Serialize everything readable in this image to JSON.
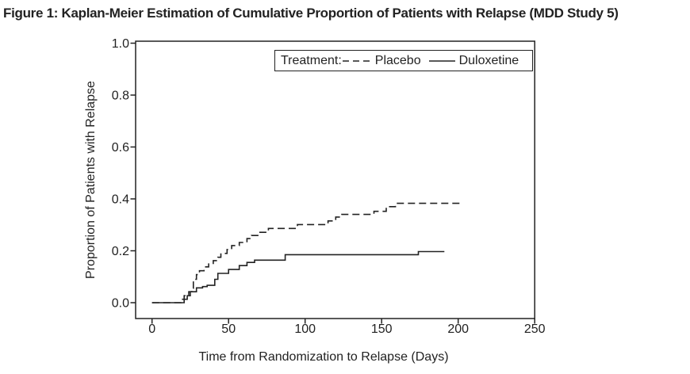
{
  "figure": {
    "title": "Figure 1: Kaplan-Meier Estimation of Cumulative Proportion of Patients with Relapse (MDD Study 5)"
  },
  "chart_data": {
    "type": "line",
    "subtype": "kaplan_meier_step",
    "title": "Figure 1: Kaplan-Meier Estimation of Cumulative Proportion of Patients with Relapse (MDD Study 5)",
    "xlabel": "Time from Randomization to Relapse (Days)",
    "ylabel": "Proportion of Patients with Relapse",
    "xlim": [
      0,
      250
    ],
    "ylim": [
      0.0,
      1.0
    ],
    "x_ticks": [
      0,
      50,
      100,
      150,
      200,
      250
    ],
    "x_tick_labels": [
      "0",
      "50",
      "100",
      "150",
      "200",
      "250"
    ],
    "y_ticks": [
      0.0,
      0.2,
      0.4,
      0.6,
      0.8,
      1.0
    ],
    "y_tick_labels": [
      "0.0",
      "0.2",
      "0.4",
      "0.6",
      "0.8",
      "1.0"
    ],
    "grid": false,
    "legend": {
      "label": "Treatment:",
      "position": "top-inside",
      "entries": [
        {
          "name": "Placebo",
          "line_style": "dashed"
        },
        {
          "name": "Duloxetine",
          "line_style": "solid"
        }
      ]
    },
    "series": [
      {
        "name": "Placebo",
        "line_style": "dashed",
        "color": "#222222",
        "points": [
          [
            0,
            0.0
          ],
          [
            19,
            0.013
          ],
          [
            21,
            0.027
          ],
          [
            24,
            0.042
          ],
          [
            26,
            0.055
          ],
          [
            27,
            0.09
          ],
          [
            29,
            0.108
          ],
          [
            31,
            0.123
          ],
          [
            34,
            0.138
          ],
          [
            37,
            0.149
          ],
          [
            40,
            0.162
          ],
          [
            43,
            0.175
          ],
          [
            45,
            0.19
          ],
          [
            49,
            0.205
          ],
          [
            52,
            0.22
          ],
          [
            57,
            0.232
          ],
          [
            62,
            0.247
          ],
          [
            65,
            0.259
          ],
          [
            70,
            0.271
          ],
          [
            76,
            0.286
          ],
          [
            95,
            0.301
          ],
          [
            115,
            0.315
          ],
          [
            120,
            0.33
          ],
          [
            124,
            0.34
          ],
          [
            145,
            0.352
          ],
          [
            153,
            0.37
          ],
          [
            159,
            0.383
          ],
          [
            202,
            0.383
          ]
        ]
      },
      {
        "name": "Duloxetine",
        "line_style": "solid",
        "color": "#222222",
        "points": [
          [
            0,
            0.0
          ],
          [
            21,
            0.013
          ],
          [
            23,
            0.027
          ],
          [
            25,
            0.042
          ],
          [
            29,
            0.057
          ],
          [
            33,
            0.062
          ],
          [
            36,
            0.067
          ],
          [
            41,
            0.09
          ],
          [
            43,
            0.113
          ],
          [
            50,
            0.128
          ],
          [
            57,
            0.143
          ],
          [
            62,
            0.155
          ],
          [
            67,
            0.164
          ],
          [
            87,
            0.185
          ],
          [
            174,
            0.197
          ],
          [
            191,
            0.197
          ]
        ]
      }
    ],
    "colors": {
      "line": "#222222",
      "text": "#222222",
      "background": "#ffffff"
    }
  }
}
